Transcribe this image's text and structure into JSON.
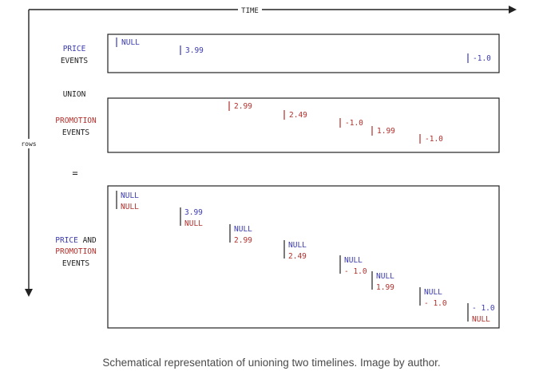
{
  "colors": {
    "price": "#3b3bb0",
    "promotion": "#b0302c",
    "ink": "#222222",
    "caption": "#4a4a4a"
  },
  "axes": {
    "time_label": "TIME",
    "rows_label": "rows"
  },
  "price_events": {
    "label_line1": "PRICE",
    "label_line2": "EVENTS",
    "items": [
      "NULL",
      "3.99",
      "-1.0"
    ]
  },
  "union_label": "UNION",
  "promotion_events": {
    "label_line1": "PROMOTION",
    "label_line2": "EVENTS",
    "items": [
      "2.99",
      "2.49",
      "-1.0",
      "1.99",
      "-1.0"
    ]
  },
  "equals_label": "=",
  "combined_events": {
    "label_price": "PRICE",
    "label_and": "AND",
    "label_promotion": "PROMOTION",
    "label_events": "EVENTS",
    "rows": [
      {
        "price": "NULL",
        "promotion": "NULL"
      },
      {
        "price": "3.99",
        "promotion": "NULL"
      },
      {
        "price": "NULL",
        "promotion": "2.99"
      },
      {
        "price": "NULL",
        "promotion": "2.49"
      },
      {
        "price": "NULL",
        "promotion": "- 1.0"
      },
      {
        "price": "NULL",
        "promotion": "1.99"
      },
      {
        "price": "NULL",
        "promotion": "- 1.0"
      },
      {
        "price": "- 1.0",
        "promotion": "NULL"
      }
    ]
  },
  "caption": "Schematical representation of unioning two timelines. Image by author."
}
